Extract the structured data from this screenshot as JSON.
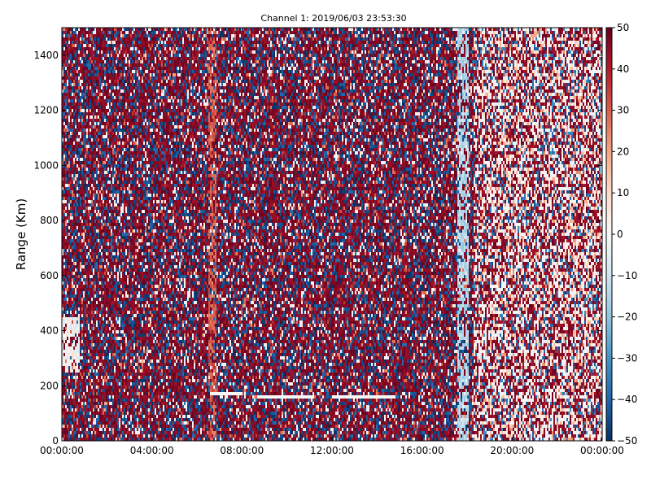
{
  "chart_data": {
    "type": "heatmap",
    "title": "Channel 1: 2019/06/03 23:53:30",
    "xlabel": "",
    "ylabel": "Range (Km)",
    "x_ticks": [
      "00:00:00",
      "04:00:00",
      "08:00:00",
      "12:00:00",
      "16:00:00",
      "20:00:00",
      "00:00:00"
    ],
    "x_range_hours": [
      0,
      24
    ],
    "y_ticks": [
      0,
      200,
      400,
      600,
      800,
      1000,
      1200,
      1400
    ],
    "ylim": [
      0,
      1500
    ],
    "colorbar": {
      "range": [
        -50,
        50
      ],
      "ticks": [
        50,
        40,
        30,
        20,
        10,
        0,
        -10,
        -20,
        -30,
        -40,
        -50
      ],
      "colormap": "RdBu_r",
      "colors": {
        "low": "#053061",
        "mid": "#f7f7f7",
        "high": "#67001f"
      }
    },
    "features": [
      {
        "name": "bright band",
        "hour_start": 6.5,
        "hour_end": 6.9,
        "value": 25
      },
      {
        "name": "light band",
        "hour_start": 17.6,
        "hour_end": 18.1,
        "value": -15
      },
      {
        "name": "white streak",
        "hour_start": 6.6,
        "hour_end": 8.0,
        "range_km": 175
      },
      {
        "name": "white streak",
        "hour_start": 8.7,
        "hour_end": 11.2,
        "range_km": 160
      },
      {
        "name": "white streak",
        "hour_start": 12.0,
        "hour_end": 14.8,
        "range_km": 160
      },
      {
        "name": "pale region",
        "hour_start": 0,
        "hour_end": 0.8,
        "range_min_km": 250,
        "range_max_km": 450,
        "value": 0
      }
    ],
    "grid": false,
    "legend": "colorbar-right"
  }
}
